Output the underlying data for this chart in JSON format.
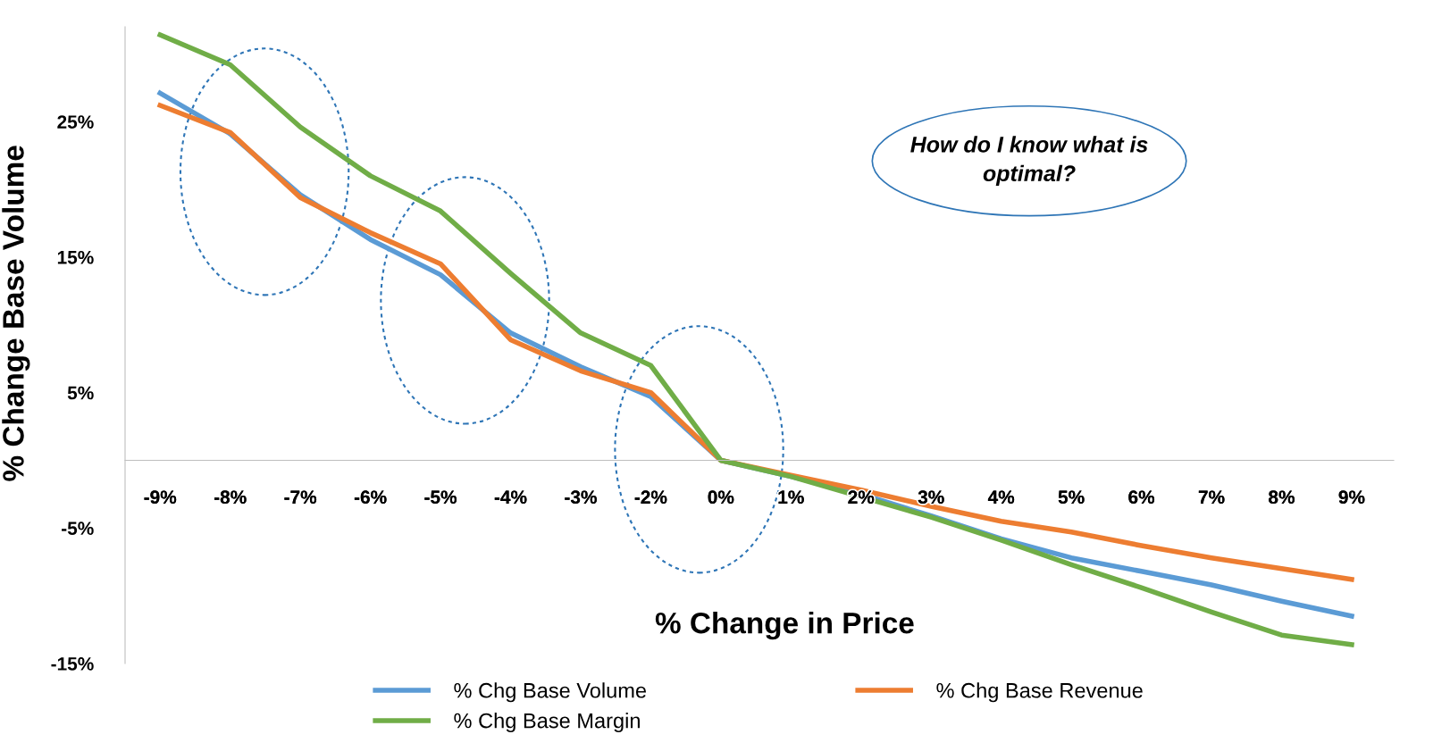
{
  "chart_data": {
    "type": "line",
    "xlabel": "% Change in Price",
    "ylabel": "% Change Base Volume",
    "categories": [
      "-9%",
      "-8%",
      "-7%",
      "-6%",
      "-5%",
      "-4%",
      "-3%",
      "-2%",
      "0%",
      "1%",
      "2%",
      "3%",
      "4%",
      "5%",
      "6%",
      "7%",
      "8%",
      "9%"
    ],
    "series": [
      {
        "name": "% Chg Base Volume",
        "color": "#5b9bd5",
        "values": [
          27.1,
          24.1,
          19.6,
          16.3,
          13.7,
          9.4,
          6.9,
          4.7,
          0,
          -1.2,
          -2.5,
          -4.1,
          -5.8,
          -7.2,
          -8.2,
          -9.2,
          -10.4,
          -11.5
        ]
      },
      {
        "name": "% Chg Base Revenue",
        "color": "#ed7d31",
        "values": [
          26.2,
          24.2,
          19.4,
          16.8,
          14.5,
          8.9,
          6.6,
          5.0,
          0,
          -1.1,
          -2.2,
          -3.4,
          -4.5,
          -5.3,
          -6.3,
          -7.2,
          -8.0,
          -8.8
        ]
      },
      {
        "name": "% Chg Base Margin",
        "color": "#70ad47",
        "values": [
          31.4,
          29.2,
          24.6,
          21.0,
          18.4,
          13.8,
          9.4,
          7.0,
          0,
          -1.2,
          -2.7,
          -4.2,
          -5.9,
          -7.7,
          -9.4,
          -11.2,
          -12.9,
          -13.6
        ]
      }
    ],
    "ylim": [
      -15,
      32
    ],
    "yticks": [
      {
        "value": -15,
        "label": "-15%"
      },
      {
        "value": -5,
        "label": "-5%"
      },
      {
        "value": 5,
        "label": "5%"
      },
      {
        "value": 15,
        "label": "15%"
      },
      {
        "value": 25,
        "label": "25%"
      }
    ],
    "annotations": [
      "How do I know what is\noptimal?"
    ],
    "grid": false,
    "legend": "bottom",
    "marker": "none",
    "line_style": "solid"
  }
}
